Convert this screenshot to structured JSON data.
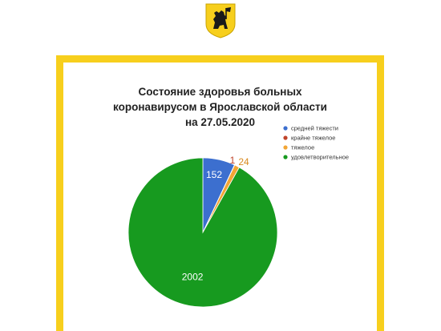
{
  "colors": {
    "frame": "#f7cf1d",
    "emblem_bg": "#f7cf1d",
    "emblem_fg": "#1a1a1a"
  },
  "emblem": {
    "icon": "yaroslavl-coat-of-arms-bear-icon"
  },
  "chart_data": {
    "type": "pie",
    "title_lines": [
      "Состояние здоровья больных",
      "коронавирусом в Ярославской области",
      "на 27.05.2020"
    ],
    "series": [
      {
        "name": "средней тяжести",
        "value": 152,
        "color": "#3c6fcf",
        "label_color": "#ffffff"
      },
      {
        "name": "крайне тяжелое",
        "value": 1,
        "color": "#c0442a",
        "label_color": "#c0442a"
      },
      {
        "name": "тяжелое",
        "value": 24,
        "color": "#f2a535",
        "label_color": "#d98a1f"
      },
      {
        "name": "удовлетворительное",
        "value": 2002,
        "color": "#179a1f",
        "label_color": "#ffffff"
      }
    ],
    "legend_position": "right"
  }
}
